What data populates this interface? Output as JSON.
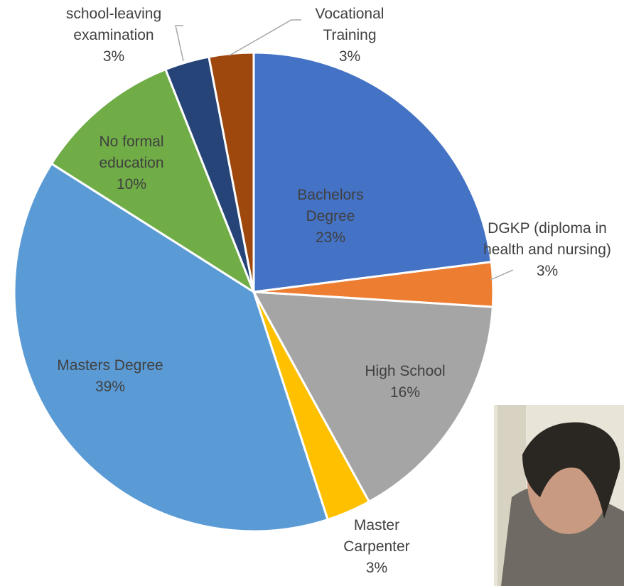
{
  "chart_data": {
    "type": "pie",
    "categories": [
      "Bachelors Degree",
      "DGKP (diploma in health and nursing)",
      "High School",
      "Master Carpenter",
      "Masters Degree",
      "No formal education",
      "school-leaving examination",
      "Vocational Training"
    ],
    "values": [
      23,
      3,
      16,
      3,
      39,
      10,
      3,
      3
    ],
    "value_labels": [
      "23%",
      "3%",
      "16%",
      "3%",
      "39%",
      "10%",
      "3%",
      "3%"
    ],
    "colors": [
      "#4472c4",
      "#ed7d31",
      "#a5a5a5",
      "#ffc000",
      "#5b9bd5",
      "#70ad47",
      "#264478",
      "#9e480e"
    ]
  }
}
